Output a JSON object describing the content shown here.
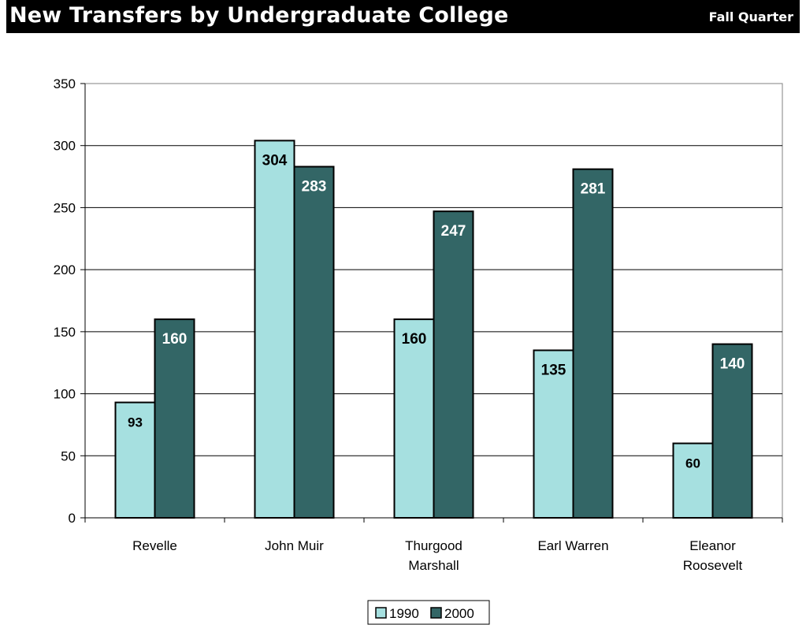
{
  "header": {
    "title": "New Transfers by Undergraduate College",
    "subtitle": "Fall Quarter"
  },
  "colors": {
    "series_1990": "#a6e0e0",
    "series_2000": "#336666"
  },
  "chart_data": {
    "type": "bar",
    "title": "New Transfers by Undergraduate College",
    "subtitle": "Fall Quarter",
    "categories": [
      [
        "Revelle"
      ],
      [
        "John Muir"
      ],
      [
        "Thurgood",
        "Marshall"
      ],
      [
        "Earl Warren"
      ],
      [
        "Eleanor",
        "Roosevelt"
      ]
    ],
    "series": [
      {
        "name": "1990",
        "values": [
          93,
          304,
          160,
          135,
          60
        ]
      },
      {
        "name": "2000",
        "values": [
          160,
          283,
          247,
          281,
          140
        ]
      }
    ],
    "ylim": [
      0,
      350
    ],
    "yticks": [
      0,
      50,
      100,
      150,
      200,
      250,
      300,
      350
    ],
    "grid": true,
    "legend": "bottom"
  }
}
